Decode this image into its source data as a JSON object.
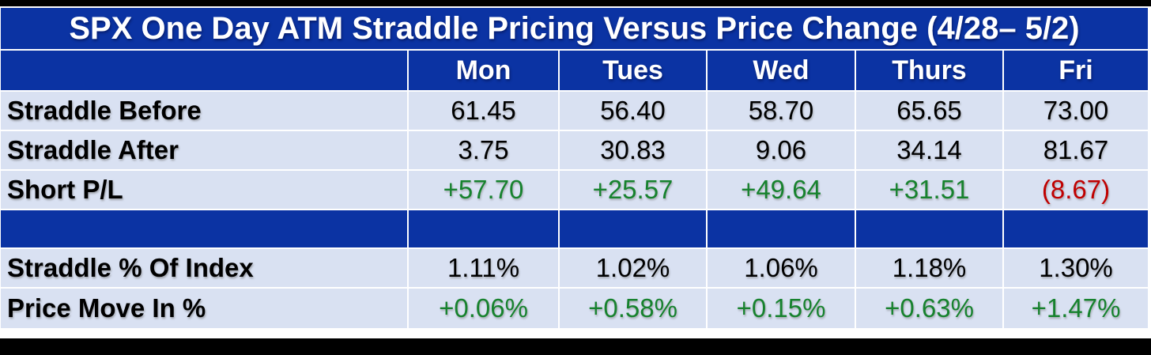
{
  "chart_data": {
    "type": "table",
    "title": "SPX One Day ATM Straddle Pricing Versus Price Change (4/28– 5/2)",
    "column_headers": [
      "Mon",
      "Tues",
      "Wed",
      "Thurs",
      "Fri"
    ],
    "rows": [
      {
        "label": "Straddle Before",
        "values": [
          "61.45",
          "56.40",
          "58.70",
          "65.65",
          "73.00"
        ],
        "value_colors": [
          "black",
          "black",
          "black",
          "black",
          "black"
        ]
      },
      {
        "label": "Straddle After",
        "values": [
          "3.75",
          "30.83",
          "9.06",
          "34.14",
          "81.67"
        ],
        "value_colors": [
          "black",
          "black",
          "black",
          "black",
          "black"
        ]
      },
      {
        "label": "Short P/L",
        "values": [
          "+57.70",
          "+25.57",
          "+49.64",
          "+31.51",
          "(8.67)"
        ],
        "value_colors": [
          "green",
          "green",
          "green",
          "green",
          "red"
        ]
      },
      {
        "label": "Straddle % Of Index",
        "values": [
          "1.11%",
          "1.02%",
          "1.06%",
          "1.18%",
          "1.30%"
        ],
        "value_colors": [
          "black",
          "black",
          "black",
          "black",
          "black"
        ]
      },
      {
        "label": "Price Move In %",
        "values": [
          "+0.06%",
          "+0.58%",
          "+0.15%",
          "+0.63%",
          "+1.47%"
        ],
        "value_colors": [
          "green",
          "green",
          "green",
          "green",
          "green"
        ]
      }
    ]
  },
  "palette": {
    "header_blue": "#0B33A3",
    "row_light_blue": "#D9E1F2",
    "black": "#000000",
    "green": "#17822E",
    "red": "#C00000",
    "title_text": "#FFFFFF"
  }
}
